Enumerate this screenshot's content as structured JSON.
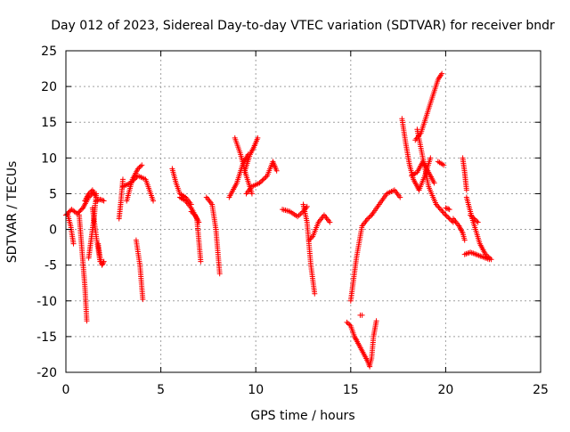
{
  "chart_data": {
    "type": "scatter",
    "title": "Day 012 of 2023, Sidereal Day-to-day VTEC variation (SDTVAR) for receiver bndr",
    "xlabel": "GPS time / hours",
    "ylabel": "SDTVAR / TECUs",
    "xlim": [
      0,
      25
    ],
    "ylim": [
      -20,
      25
    ],
    "x_ticks": [
      0,
      5,
      10,
      15,
      20,
      25
    ],
    "y_ticks": [
      -20,
      -15,
      -10,
      -5,
      0,
      5,
      10,
      15,
      20,
      25
    ],
    "grid": true,
    "marker": "+",
    "color": "#ff0000",
    "series": [
      {
        "x": [
          0.0,
          0.3,
          0.6,
          0.9,
          1.2,
          1.4
        ],
        "y": [
          2.0,
          2.8,
          2.2,
          3.0,
          4.5,
          5.0
        ]
      },
      {
        "x": [
          0.1,
          0.25,
          0.4
        ],
        "y": [
          2.0,
          0.5,
          -2.0
        ]
      },
      {
        "x": [
          0.7,
          0.85,
          1.0,
          1.1
        ],
        "y": [
          2.0,
          -3.0,
          -8.0,
          -12.8
        ]
      },
      {
        "x": [
          1.0,
          1.2,
          1.4,
          1.6
        ],
        "y": [
          4.0,
          5.0,
          5.5,
          4.5
        ]
      },
      {
        "x": [
          1.4,
          1.6,
          1.8
        ],
        "y": [
          3.0,
          -1.0,
          -4.5
        ]
      },
      {
        "x": [
          1.2,
          1.35,
          1.5,
          1.6
        ],
        "y": [
          -4.0,
          -1.0,
          2.0,
          5.0
        ]
      },
      {
        "x": [
          1.6,
          1.8,
          2.0
        ],
        "y": [
          4.0,
          4.2,
          4.0
        ]
      },
      {
        "x": [
          1.7,
          1.8,
          1.9,
          2.0
        ],
        "y": [
          -2.0,
          -4.0,
          -5.0,
          -4.5
        ]
      },
      {
        "x": [
          2.8,
          2.9,
          3.0
        ],
        "y": [
          1.5,
          4.0,
          7.0
        ]
      },
      {
        "x": [
          3.0,
          3.4,
          3.8,
          4.2,
          4.6
        ],
        "y": [
          6.0,
          6.5,
          7.5,
          7.0,
          4.0
        ]
      },
      {
        "x": [
          3.2,
          3.5,
          3.8,
          4.0
        ],
        "y": [
          4.0,
          7.0,
          8.5,
          9.0
        ]
      },
      {
        "x": [
          3.7,
          3.9,
          4.05
        ],
        "y": [
          -1.5,
          -5.0,
          -9.8
        ]
      },
      {
        "x": [
          5.6,
          5.8,
          6.0,
          6.3,
          6.6
        ],
        "y": [
          8.5,
          6.5,
          5.0,
          4.5,
          3.5
        ]
      },
      {
        "x": [
          6.0,
          6.3,
          6.6,
          6.9,
          7.1
        ],
        "y": [
          4.5,
          4.0,
          3.0,
          1.5,
          -4.5
        ]
      },
      {
        "x": [
          6.6,
          6.8,
          7.0
        ],
        "y": [
          2.5,
          2.0,
          1.0
        ]
      },
      {
        "x": [
          7.4,
          7.7,
          7.9,
          8.1
        ],
        "y": [
          4.5,
          3.5,
          0.0,
          -6.2
        ]
      },
      {
        "x": [
          8.6,
          9.0,
          9.3,
          9.6
        ],
        "y": [
          4.5,
          6.5,
          9.0,
          10.5
        ]
      },
      {
        "x": [
          8.9,
          9.2,
          9.5,
          9.8
        ],
        "y": [
          12.8,
          10.5,
          7.5,
          5.0
        ]
      },
      {
        "x": [
          9.4,
          9.7,
          9.9,
          10.1
        ],
        "y": [
          8.0,
          10.5,
          11.5,
          12.8
        ]
      },
      {
        "x": [
          9.5,
          9.8,
          10.2,
          10.6,
          10.9,
          11.1
        ],
        "y": [
          5.0,
          6.0,
          6.5,
          7.5,
          9.5,
          8.2
        ]
      },
      {
        "x": [
          11.4,
          11.8,
          12.2,
          12.5,
          12.7
        ],
        "y": [
          2.8,
          2.5,
          1.8,
          2.5,
          3.2
        ]
      },
      {
        "x": [
          12.5,
          12.7,
          12.9,
          13.1
        ],
        "y": [
          3.5,
          1.0,
          -5.0,
          -9.0
        ]
      },
      {
        "x": [
          12.8,
          13.0,
          13.3,
          13.6,
          13.9
        ],
        "y": [
          -1.5,
          -1.0,
          1.0,
          2.0,
          1.0
        ]
      },
      {
        "x": [
          14.8,
          15.0,
          15.2,
          15.3
        ],
        "y": [
          -13.0,
          -13.5,
          -15.0,
          -15.5
        ]
      },
      {
        "x": [
          15.0,
          15.3,
          15.6,
          15.9,
          16.1
        ],
        "y": [
          -10.0,
          -4.0,
          0.5,
          1.5,
          2.0
        ]
      },
      {
        "x": [
          15.3,
          15.6,
          15.9,
          16.0
        ],
        "y": [
          -15.5,
          -17.0,
          -18.5,
          -19.2
        ]
      },
      {
        "x": [
          15.5,
          15.6
        ],
        "y": [
          -12.0,
          -12.0
        ]
      },
      {
        "x": [
          16.0,
          16.1,
          16.2,
          16.35
        ],
        "y": [
          -19.0,
          -18.0,
          -15.0,
          -12.8
        ]
      },
      {
        "x": [
          16.1,
          16.5,
          16.9,
          17.3,
          17.6
        ],
        "y": [
          2.0,
          3.5,
          5.0,
          5.5,
          4.5
        ]
      },
      {
        "x": [
          17.7,
          17.9,
          18.1,
          18.3,
          18.6
        ],
        "y": [
          15.5,
          12.0,
          9.0,
          7.0,
          5.5
        ]
      },
      {
        "x": [
          18.2,
          18.5,
          18.8,
          19.1,
          19.4
        ],
        "y": [
          7.5,
          8.0,
          9.5,
          8.0,
          6.5
        ]
      },
      {
        "x": [
          18.4,
          18.7,
          19.0,
          19.3,
          19.6,
          19.8
        ],
        "y": [
          12.5,
          13.5,
          16.0,
          18.5,
          21.0,
          21.8
        ]
      },
      {
        "x": [
          18.5,
          18.8,
          19.1,
          19.5,
          20.0,
          20.4
        ],
        "y": [
          14.0,
          10.0,
          6.0,
          3.5,
          2.0,
          1.0
        ]
      },
      {
        "x": [
          18.6,
          18.9,
          19.2
        ],
        "y": [
          5.5,
          7.5,
          10.0
        ]
      },
      {
        "x": [
          19.6,
          19.9
        ],
        "y": [
          9.5,
          9.0
        ]
      },
      {
        "x": [
          20.0,
          20.2
        ],
        "y": [
          3.0,
          2.8
        ]
      },
      {
        "x": [
          20.4,
          20.7,
          20.9,
          21.0
        ],
        "y": [
          1.5,
          0.5,
          -0.5,
          -1.5
        ]
      },
      {
        "x": [
          20.9,
          21.0,
          21.1
        ],
        "y": [
          10.0,
          8.0,
          5.5
        ]
      },
      {
        "x": [
          21.1,
          21.4,
          21.8,
          22.1,
          22.4
        ],
        "y": [
          4.5,
          1.5,
          -2.0,
          -3.5,
          -4.2
        ]
      },
      {
        "x": [
          21.0,
          21.3,
          21.6,
          21.9,
          22.3
        ],
        "y": [
          -3.5,
          -3.2,
          -3.5,
          -3.8,
          -4.2
        ]
      },
      {
        "x": [
          21.3,
          21.5,
          21.7
        ],
        "y": [
          2.0,
          1.5,
          1.0
        ]
      }
    ]
  }
}
